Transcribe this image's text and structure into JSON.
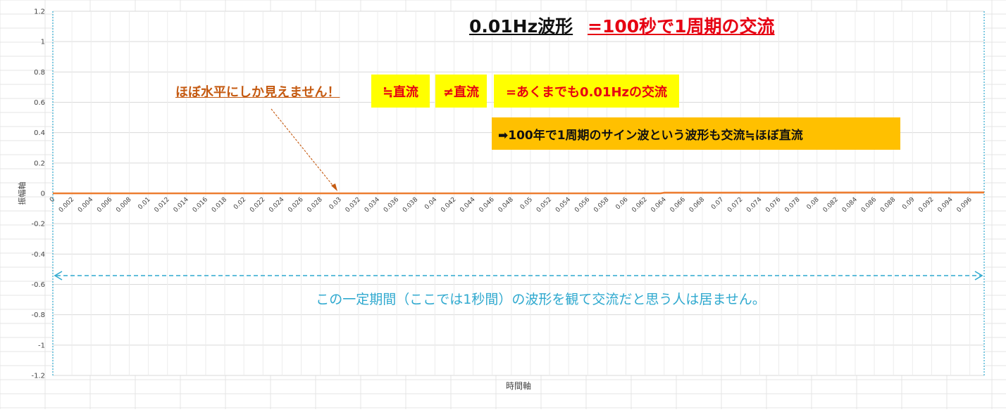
{
  "chart_data": {
    "type": "line",
    "title": "0.01Hz波形",
    "title_emphasis": "=100秒で1周期の交流",
    "xlabel": "時間軸",
    "ylabel": "振幅軸",
    "ylim": [
      -1.2,
      1.2
    ],
    "y_ticks": [
      "1.2",
      "1",
      "0.8",
      "0.6",
      "0.4",
      "0.2",
      "0",
      "-0.2",
      "-0.4",
      "-0.6",
      "-0.8",
      "-1",
      "-1.2"
    ],
    "x_ticks": [
      "0",
      "0.002",
      "0.004",
      "0.006",
      "0.008",
      "0.01",
      "0.012",
      "0.014",
      "0.016",
      "0.018",
      "0.02",
      "0.022",
      "0.024",
      "0.026",
      "0.028",
      "0.03",
      "0.032",
      "0.034",
      "0.036",
      "0.038",
      "0.04",
      "0.042",
      "0.044",
      "0.046",
      "0.048",
      "0.05",
      "0.052",
      "0.054",
      "0.056",
      "0.058",
      "0.06",
      "0.062",
      "0.064",
      "0.066",
      "0.068",
      "0.07",
      "0.072",
      "0.074",
      "0.076",
      "0.078",
      "0.08",
      "0.082",
      "0.084",
      "0.086",
      "0.088",
      "0.09",
      "0.092",
      "0.094",
      "0.096"
    ],
    "xlim": [
      0,
      0.0975
    ],
    "grid": true,
    "legend": "none",
    "series": [
      {
        "x": [
          0,
          0.0636,
          0.064,
          0.0975
        ],
        "values": [
          0,
          0,
          0.004,
          0.006
        ],
        "color": "#ed7d31"
      }
    ],
    "annotations": {
      "arrow_note": "ほぼ水平にしか見えません！",
      "box_approx_dc": "≒直流",
      "box_not_dc": "≠直流",
      "box_ac": "=あくまでも0.01Hzの交流",
      "box_100years": "➡100年で1周期のサイン波という波形も交流≒ほぼ直流",
      "span_note": "この一定期間（ここでは1秒間）の波形を観て交流だと思う人は居ません。"
    },
    "colors": {
      "line": "#ed7d31",
      "span_arrow": "#2fa9cf",
      "highlight_yellow": "#ffff00",
      "highlight_orange": "#ffc000",
      "emphasis_red": "#e60012",
      "note_brown": "#c55a11"
    }
  }
}
